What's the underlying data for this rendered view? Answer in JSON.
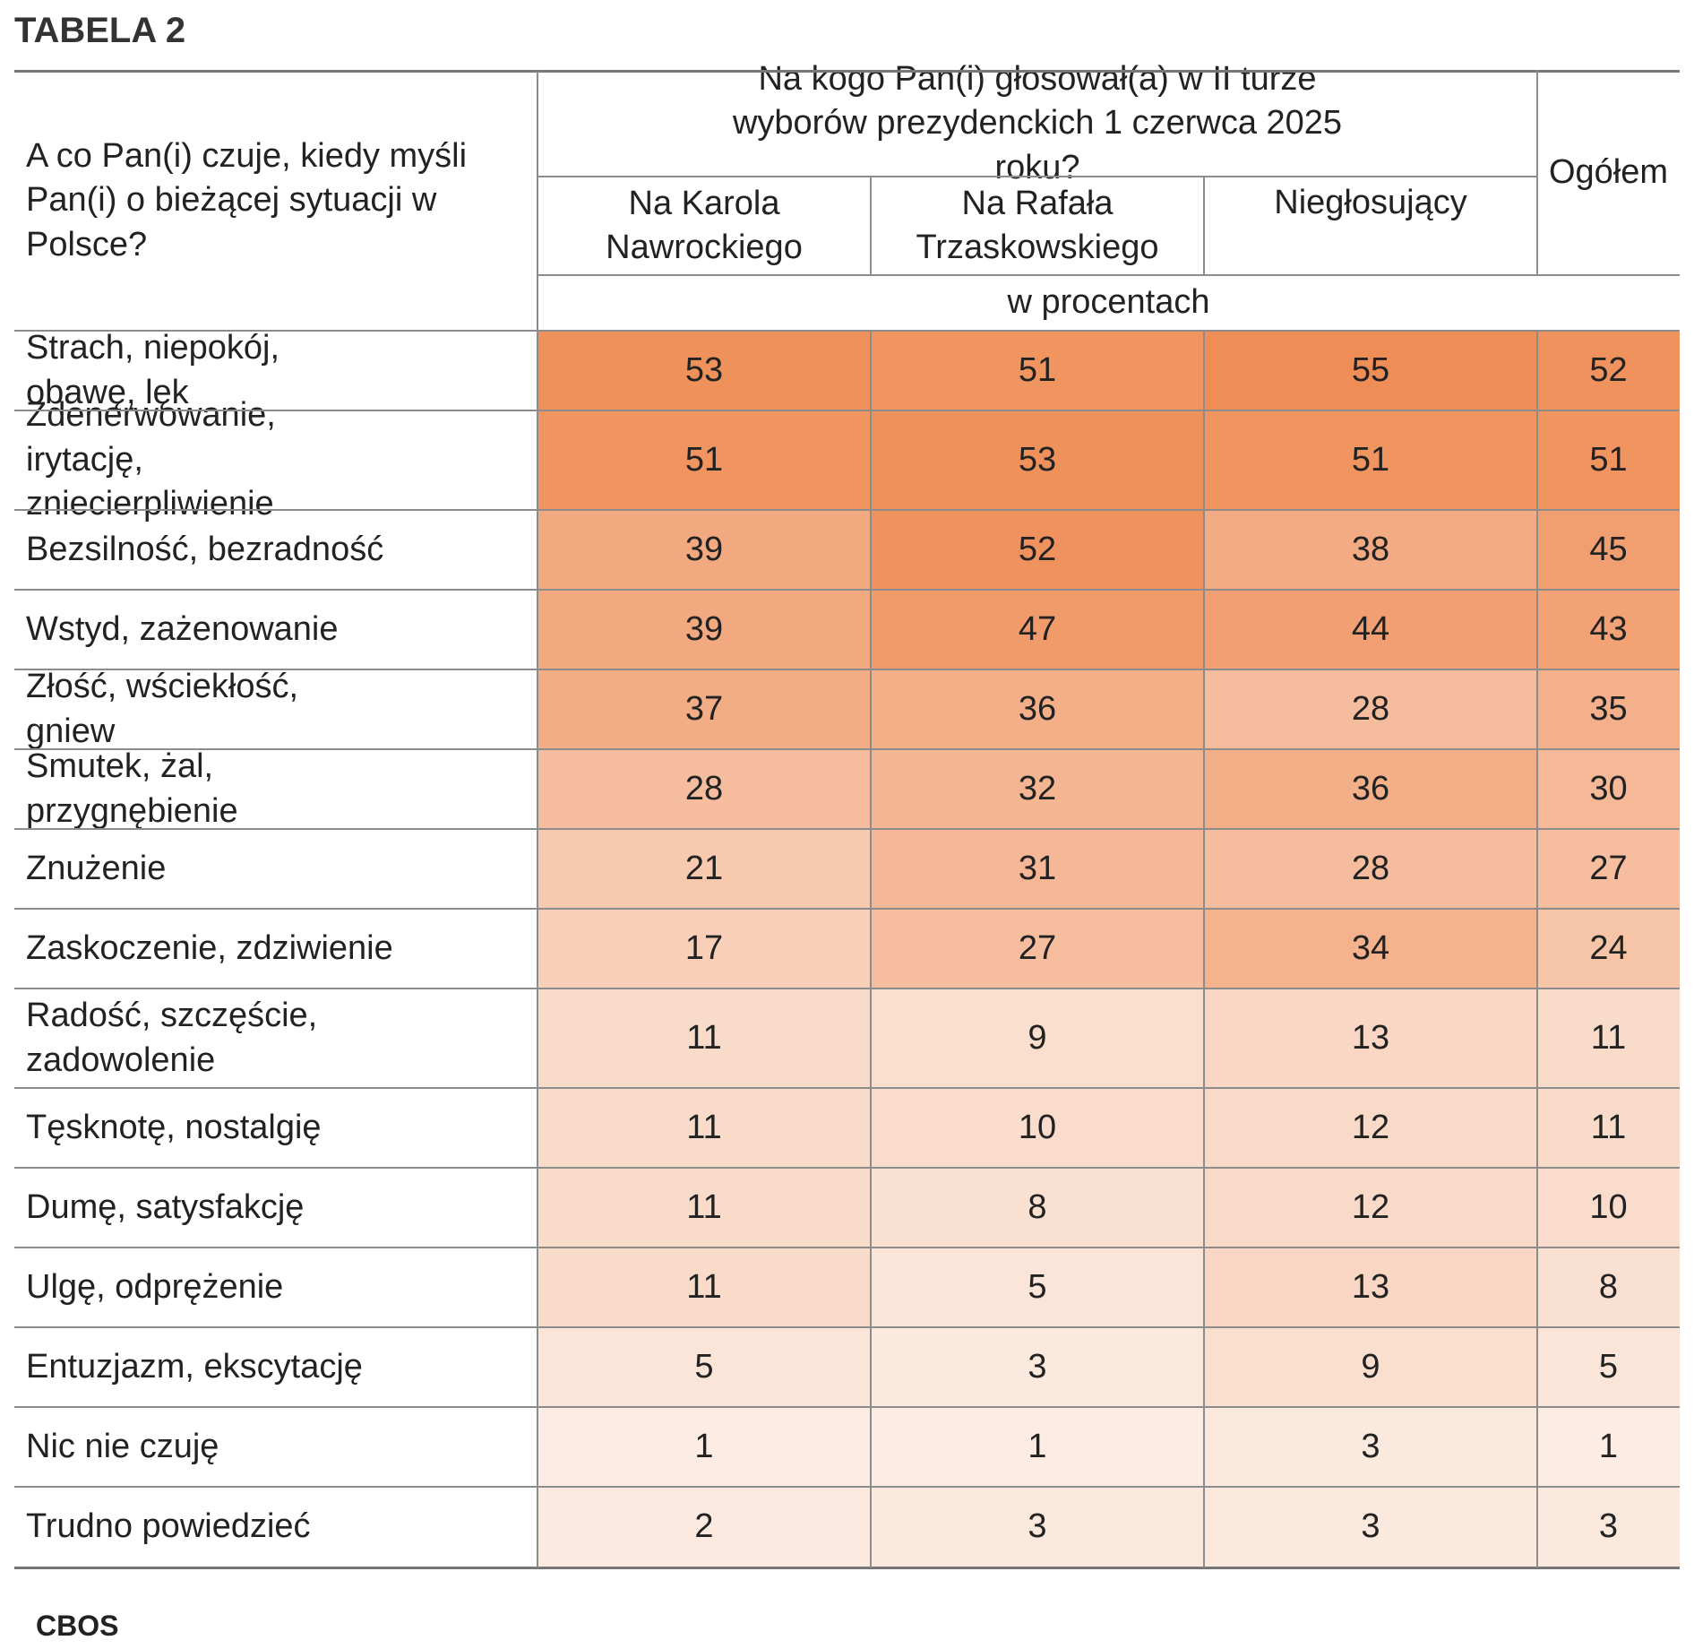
{
  "title": "TABELA 2",
  "header": {
    "row_label": "A co Pan(i) czuje, kiedy myśli Pan(i) o bieżącej sytuacji w Polsce?",
    "group_question": "Na kogo Pan(i) głosował(a) w II turze wyborów prezydenckich 1 czerwca 2025 roku?",
    "columns": [
      "Na Karola Nawrockiego",
      "Na Rafała Trzaskowskiego",
      "Niegłosujący",
      "Ogółem"
    ],
    "unit": "w procentach"
  },
  "rows": [
    {
      "label": "Strach, niepokój, obawę, lęk",
      "values": [
        53,
        51,
        55,
        52
      ]
    },
    {
      "label": "Zdenerwowanie, irytację, zniecierpliwienie",
      "values": [
        51,
        53,
        51,
        51
      ]
    },
    {
      "label": "Bezsilność, bezradność",
      "values": [
        39,
        52,
        38,
        45
      ]
    },
    {
      "label": "Wstyd, zażenowanie",
      "values": [
        39,
        47,
        44,
        43
      ]
    },
    {
      "label": "Złość, wściekłość, gniew",
      "values": [
        37,
        36,
        28,
        35
      ]
    },
    {
      "label": "Smutek, żal, przygnębienie",
      "values": [
        28,
        32,
        36,
        30
      ]
    },
    {
      "label": "Znużenie",
      "values": [
        21,
        31,
        28,
        27
      ]
    },
    {
      "label": "Zaskoczenie, zdziwienie",
      "values": [
        17,
        27,
        34,
        24
      ]
    },
    {
      "label": "Radość, szczęście, zadowolenie",
      "values": [
        11,
        9,
        13,
        11
      ]
    },
    {
      "label": "Tęsknotę, nostalgię",
      "values": [
        11,
        10,
        12,
        11
      ]
    },
    {
      "label": "Dumę, satysfakcję",
      "values": [
        11,
        8,
        12,
        10
      ]
    },
    {
      "label": "Ulgę, odprężenie",
      "values": [
        11,
        5,
        13,
        8
      ]
    },
    {
      "label": "Entuzjazm, ekscytację",
      "values": [
        5,
        3,
        9,
        5
      ]
    },
    {
      "label": "Nic nie czuję",
      "values": [
        1,
        1,
        3,
        1
      ]
    },
    {
      "label": "Trudno powiedzieć",
      "values": [
        2,
        3,
        3,
        3
      ]
    }
  ],
  "heat_colors": {
    "min": "#fceee6",
    "max": "#ef8d56"
  },
  "source": "CBOS"
}
